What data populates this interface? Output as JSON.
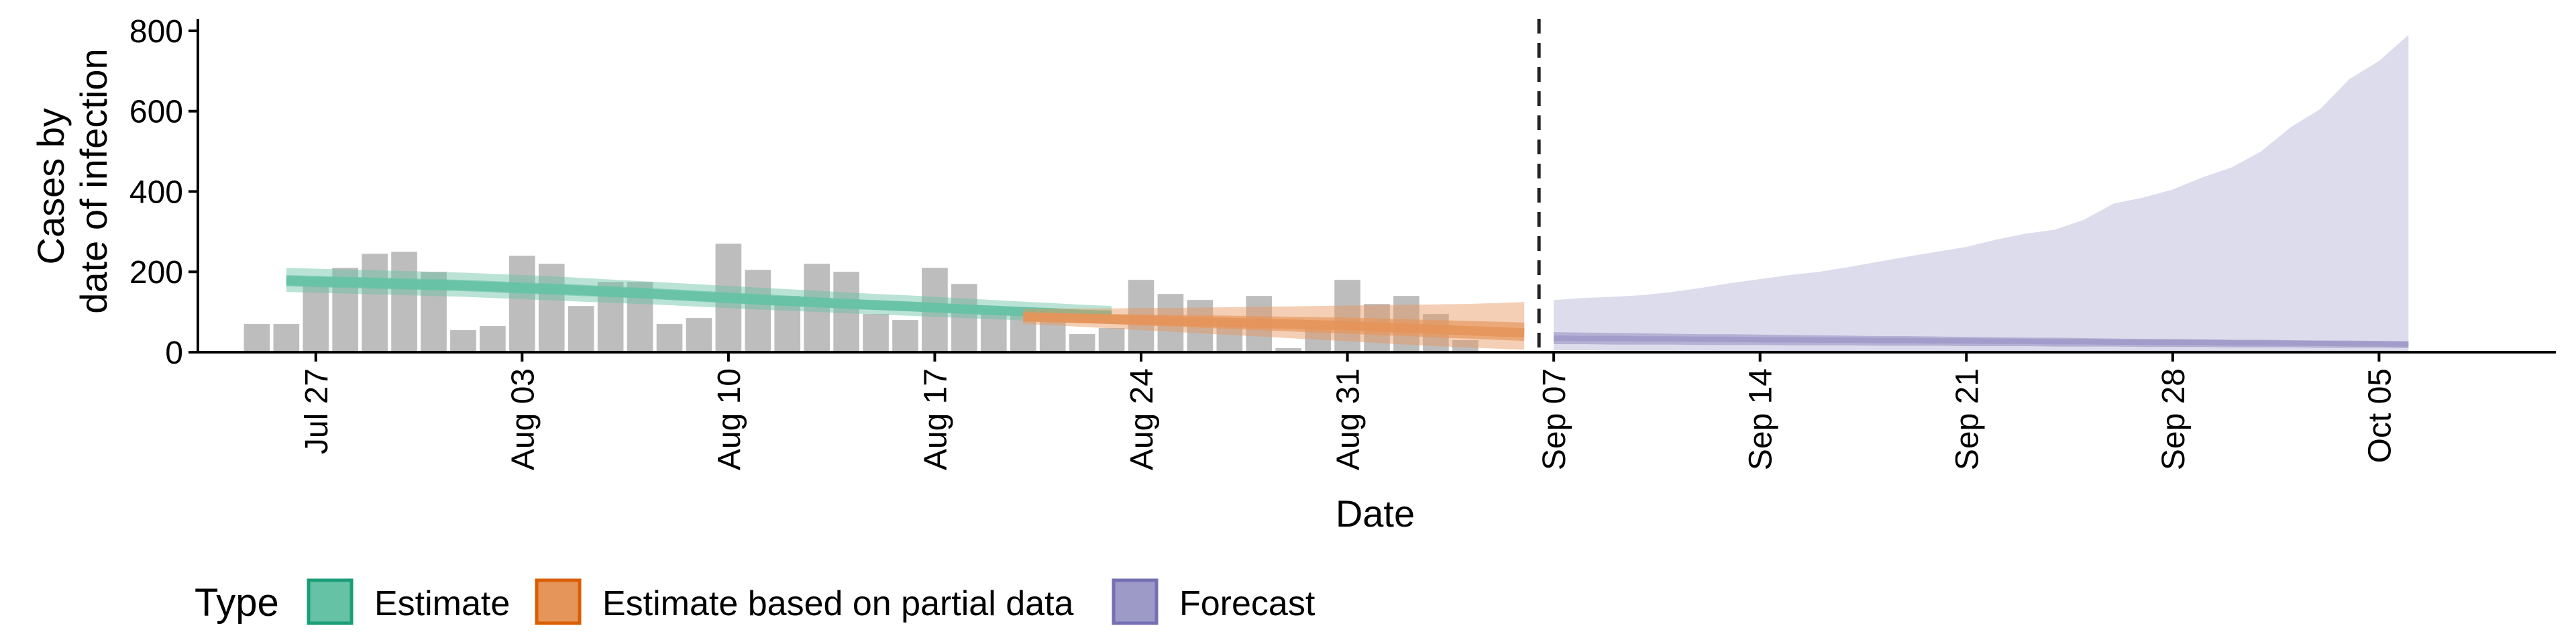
{
  "chart_data": {
    "type": "bar",
    "title": "",
    "xlabel": "Date",
    "ylabel": [
      "Cases by",
      "date of infection"
    ],
    "ylim": [
      0,
      830
    ],
    "yticks": [
      0,
      200,
      400,
      600,
      800
    ],
    "x_start": "2020-07-23",
    "x_end": "2020-10-11",
    "xticks": [
      {
        "date": "2020-07-27",
        "label": "Jul 27"
      },
      {
        "date": "2020-08-03",
        "label": "Aug 03"
      },
      {
        "date": "2020-08-10",
        "label": "Aug 10"
      },
      {
        "date": "2020-08-17",
        "label": "Aug 17"
      },
      {
        "date": "2020-08-24",
        "label": "Aug 24"
      },
      {
        "date": "2020-08-31",
        "label": "Aug 31"
      },
      {
        "date": "2020-09-07",
        "label": "Sep 07"
      },
      {
        "date": "2020-09-14",
        "label": "Sep 14"
      },
      {
        "date": "2020-09-21",
        "label": "Sep 21"
      },
      {
        "date": "2020-09-28",
        "label": "Sep 28"
      },
      {
        "date": "2020-10-05",
        "label": "Oct 05"
      }
    ],
    "forecast_date": "2020-09-06",
    "bars": {
      "start_date": "2020-07-25",
      "values": [
        70,
        70,
        180,
        210,
        245,
        250,
        200,
        55,
        65,
        240,
        220,
        115,
        175,
        175,
        70,
        85,
        270,
        205,
        140,
        220,
        200,
        95,
        80,
        210,
        170,
        110,
        110,
        100,
        45,
        60,
        180,
        145,
        130,
        80,
        140,
        10,
        65,
        180,
        120,
        140,
        95,
        30
      ]
    },
    "series": [
      {
        "name": "Estimate",
        "type_key": "estimate",
        "color": "#1B9E77",
        "fill": "#66C2A5",
        "start_date": "2020-07-26",
        "median": [
          178,
          176,
          174,
          172,
          170,
          168,
          166,
          163,
          160,
          157,
          154,
          150,
          147,
          143,
          139,
          135,
          131,
          127,
          124,
          120,
          117,
          114,
          111,
          107,
          104,
          101,
          98,
          94,
          92
        ],
        "lower50": [
          164,
          162,
          160,
          158,
          156,
          154,
          152,
          149,
          146,
          143,
          140,
          137,
          134,
          130,
          126,
          122,
          118,
          115,
          112,
          108,
          105,
          102,
          99,
          96,
          93,
          90,
          87,
          84,
          82
        ],
        "upper50": [
          192,
          190,
          188,
          186,
          184,
          182,
          180,
          177,
          174,
          171,
          168,
          164,
          161,
          157,
          153,
          149,
          145,
          141,
          137,
          133,
          130,
          127,
          123,
          119,
          116,
          112,
          109,
          105,
          102
        ],
        "lower90": [
          150,
          148,
          146,
          144,
          142,
          140,
          138,
          135,
          132,
          129,
          126,
          123,
          120,
          117,
          113,
          110,
          106,
          103,
          100,
          97,
          94,
          91,
          88,
          85,
          82,
          79,
          76,
          73,
          71
        ],
        "upper90": [
          210,
          208,
          206,
          204,
          202,
          200,
          198,
          195,
          192,
          189,
          185,
          181,
          177,
          173,
          169,
          165,
          161,
          157,
          153,
          149,
          145,
          142,
          138,
          134,
          130,
          126,
          122,
          118,
          115
        ]
      },
      {
        "name": "Estimate based on partial data",
        "type_key": "partial",
        "color": "#D95F02",
        "fill": "#E6955A",
        "start_date": "2020-08-20",
        "median": [
          88,
          86,
          84,
          82,
          80,
          78,
          76,
          74,
          72,
          70,
          68,
          66,
          63,
          60,
          57,
          54,
          51,
          48
        ],
        "lower50": [
          78,
          76,
          73,
          70,
          67,
          64,
          61,
          58,
          55,
          52,
          49,
          46,
          43,
          40,
          37,
          34,
          31,
          28
        ],
        "upper50": [
          98,
          97,
          96,
          95,
          94,
          93,
          92,
          91,
          90,
          88,
          87,
          86,
          84,
          82,
          80,
          78,
          76,
          74
        ],
        "lower90": [
          70,
          67,
          63,
          59,
          55,
          51,
          47,
          43,
          39,
          35,
          31,
          27,
          23,
          19,
          15,
          12,
          9,
          6
        ],
        "upper90": [
          108,
          108,
          109,
          109,
          110,
          110,
          111,
          112,
          113,
          114,
          115,
          116,
          117,
          118,
          119,
          120,
          122,
          125
        ]
      },
      {
        "name": "Forecast",
        "type_key": "forecast",
        "color": "#7570B3",
        "fill": "#9E9AC8",
        "start_date": "2020-09-07",
        "median": [
          35,
          34,
          34,
          33,
          33,
          32,
          32,
          31,
          31,
          30,
          30,
          29,
          29,
          28,
          28,
          27,
          27,
          26,
          26,
          25,
          25,
          24,
          24,
          23,
          23,
          22,
          22,
          21,
          21,
          20
        ],
        "lower50": [
          20,
          20,
          19,
          19,
          19,
          18,
          18,
          18,
          17,
          17,
          17,
          16,
          16,
          16,
          15,
          15,
          15,
          14,
          14,
          14,
          13,
          13,
          13,
          12,
          12,
          12,
          11,
          11,
          11,
          10
        ],
        "upper50": [
          50,
          49,
          48,
          47,
          46,
          45,
          45,
          44,
          43,
          42,
          41,
          40,
          40,
          39,
          38,
          37,
          36,
          36,
          35,
          34,
          33,
          33,
          32,
          31,
          31,
          30,
          29,
          29,
          28,
          27
        ],
        "lower90": [
          5,
          5,
          4,
          4,
          4,
          4,
          3,
          3,
          3,
          3,
          3,
          3,
          2,
          2,
          2,
          2,
          2,
          2,
          2,
          2,
          1,
          1,
          1,
          1,
          1,
          1,
          1,
          1,
          1,
          1
        ],
        "upper90": [
          130,
          135,
          138,
          142,
          150,
          160,
          172,
          182,
          192,
          200,
          212,
          225,
          238,
          250,
          262,
          280,
          295,
          305,
          330,
          370,
          385,
          405,
          435,
          460,
          500,
          560,
          605,
          680,
          725,
          790
        ]
      }
    ],
    "legend": {
      "title": "Type",
      "position": "bottom-left",
      "items": [
        {
          "label": "Estimate",
          "color": "#1B9E77",
          "fill": "#66C2A5"
        },
        {
          "label": "Estimate based on partial data",
          "color": "#D95F02",
          "fill": "#E6955A"
        },
        {
          "label": "Forecast",
          "color": "#7570B3",
          "fill": "#9E9AC8"
        }
      ]
    }
  }
}
